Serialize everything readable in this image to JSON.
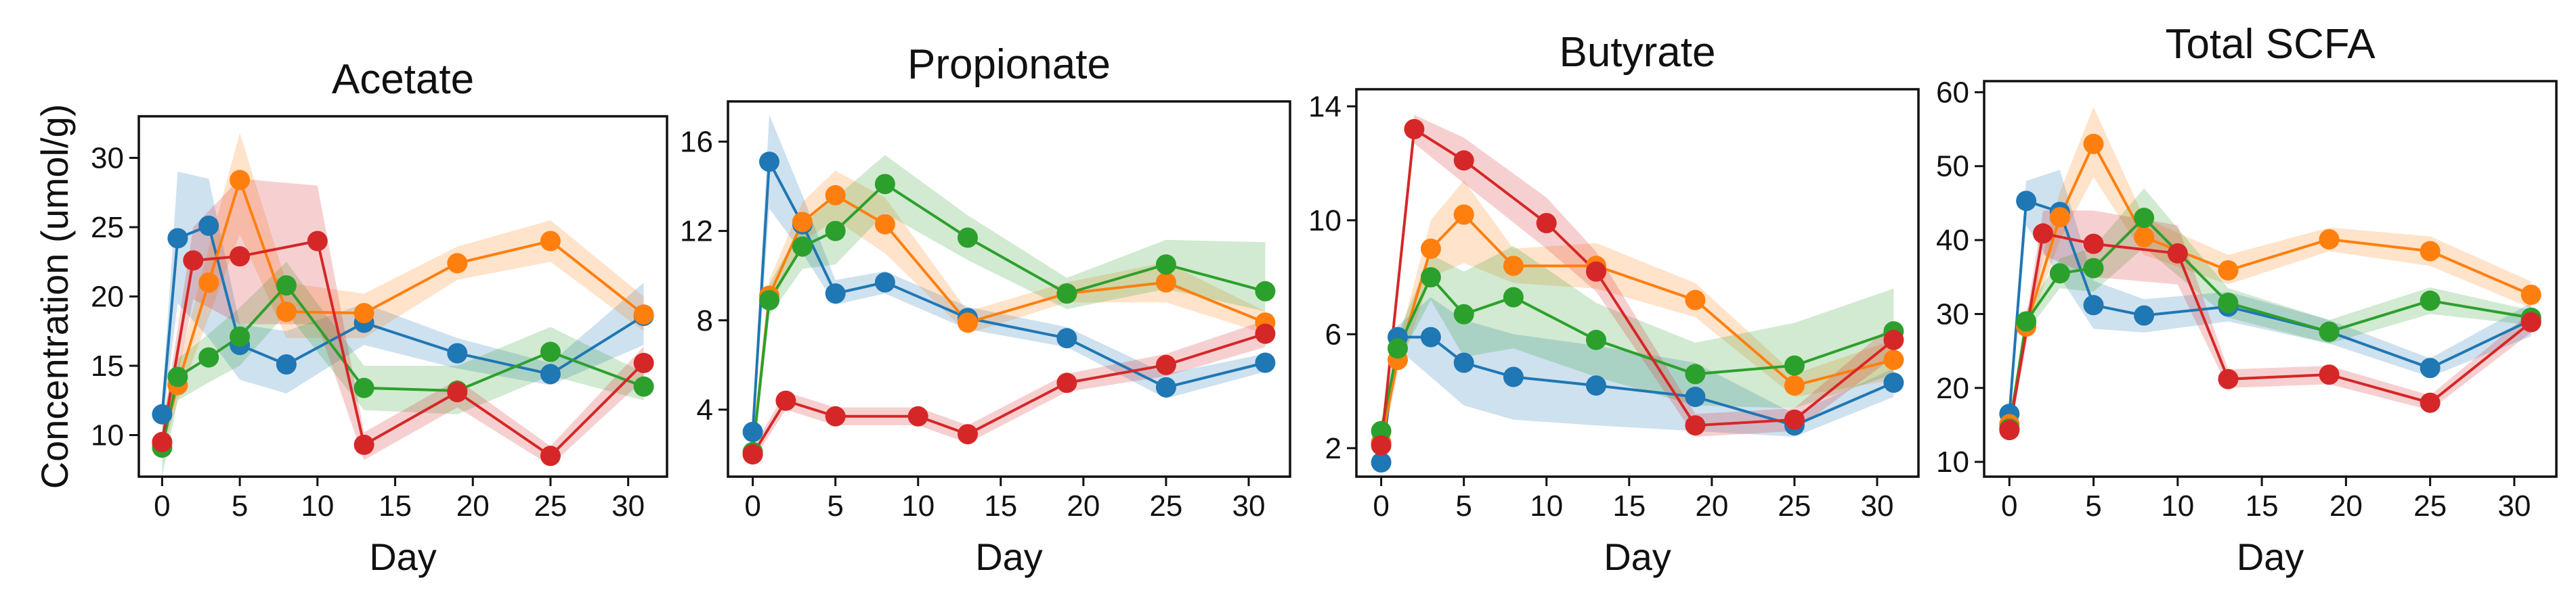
{
  "colors": {
    "blue": "#1f77b4",
    "orange": "#ff7f0e",
    "green": "#2ca02c",
    "red": "#d62728"
  },
  "chart_data": [
    {
      "type": "line",
      "title": "Acetate",
      "xlabel": "Day",
      "ylabel": "Concentration (umol/g)",
      "xlim": [
        -1.5,
        32.5
      ],
      "ylim": [
        7,
        33
      ],
      "xticks": [
        0,
        5,
        10,
        15,
        20,
        25,
        30
      ],
      "yticks": [
        10,
        15,
        20,
        25,
        30
      ],
      "series": [
        {
          "color": "#1f77b4",
          "x": [
            0,
            1,
            3,
            5,
            8,
            13,
            19,
            25,
            31
          ],
          "y": [
            11.5,
            24.2,
            25.1,
            16.5,
            15.1,
            18.1,
            15.9,
            14.4,
            18.6
          ],
          "lower": [
            10.5,
            19.5,
            17,
            14,
            13,
            16.5,
            14.8,
            13.6,
            16.5
          ],
          "upper": [
            12.5,
            29,
            28.5,
            18,
            17.5,
            19.5,
            17,
            15.2,
            21
          ]
        },
        {
          "color": "#ff7f0e",
          "x": [
            0,
            1,
            3,
            5,
            8,
            13,
            19,
            25,
            31
          ],
          "y": [
            9.4,
            13.6,
            21,
            28.4,
            18.9,
            18.8,
            22.4,
            24,
            18.7
          ],
          "lower": [
            8.5,
            12.5,
            18.5,
            24.5,
            17,
            17,
            21.2,
            22.5,
            17.5
          ],
          "upper": [
            10.3,
            14.8,
            23.5,
            31.8,
            21,
            20.2,
            23.6,
            25.5,
            20
          ]
        },
        {
          "color": "#2ca02c",
          "x": [
            0,
            1,
            3,
            5,
            8,
            13,
            19,
            25,
            31
          ],
          "y": [
            9.1,
            14.2,
            15.6,
            17.1,
            20.8,
            13.4,
            13.2,
            16,
            13.5
          ],
          "lower": [
            7,
            12.5,
            13.8,
            15,
            18.8,
            11.8,
            11.5,
            14.3,
            12.5
          ],
          "upper": [
            11.3,
            15.5,
            17.3,
            19.2,
            22.5,
            15,
            15,
            17.8,
            14.5
          ]
        },
        {
          "color": "#d62728",
          "x": [
            0,
            2,
            5,
            10,
            13,
            19,
            25,
            31
          ],
          "y": [
            9.5,
            22.6,
            22.9,
            24,
            9.3,
            13.1,
            8.5,
            15.2
          ],
          "lower": [
            8.6,
            19.8,
            18,
            18,
            8.2,
            12,
            7.8,
            14
          ],
          "upper": [
            10.4,
            25,
            28.5,
            28,
            10.2,
            14,
            9.2,
            16.4
          ]
        }
      ]
    },
    {
      "type": "line",
      "title": "Propionate",
      "xlabel": "Day",
      "ylabel": "",
      "xlim": [
        -1.5,
        32.5
      ],
      "ylim": [
        1,
        17.8
      ],
      "xticks": [
        0,
        5,
        10,
        15,
        20,
        25,
        30
      ],
      "yticks": [
        4,
        8,
        12,
        16
      ],
      "series": [
        {
          "color": "#1f77b4",
          "x": [
            0,
            1,
            3,
            5,
            8,
            13,
            19,
            25,
            31
          ],
          "y": [
            3,
            15.1,
            12.3,
            9.2,
            9.7,
            8.1,
            7.2,
            5,
            6.1
          ],
          "lower": [
            2.6,
            13,
            11,
            8.7,
            9.2,
            7.6,
            6.8,
            4.5,
            5.7
          ],
          "upper": [
            3.4,
            17.2,
            13.6,
            9.8,
            10.2,
            8.6,
            7.7,
            5.6,
            6.5
          ]
        },
        {
          "color": "#ff7f0e",
          "x": [
            0,
            1,
            3,
            5,
            8,
            13,
            19,
            25,
            31
          ],
          "y": [
            2.1,
            9.1,
            12.4,
            13.6,
            12.3,
            7.9,
            9.2,
            9.7,
            7.9
          ],
          "lower": [
            1.7,
            8.5,
            11.5,
            12.5,
            11,
            7.4,
            8.8,
            8.8,
            7.4
          ],
          "upper": [
            2.5,
            9.8,
            13.3,
            14.7,
            13.5,
            8.4,
            9.7,
            10.6,
            8.4
          ]
        },
        {
          "color": "#2ca02c",
          "x": [
            0,
            1,
            3,
            5,
            8,
            13,
            19,
            25,
            31
          ],
          "y": [
            2.1,
            8.9,
            11.3,
            12,
            14.1,
            11.7,
            9.2,
            10.5,
            9.3
          ],
          "lower": [
            1.7,
            8.2,
            10.3,
            10.5,
            12.8,
            10.7,
            8.5,
            9.4,
            8.4
          ],
          "upper": [
            2.5,
            9.6,
            12.3,
            13.5,
            15.4,
            12.7,
            9.9,
            11.6,
            11.5
          ]
        },
        {
          "color": "#d62728",
          "x": [
            0,
            2,
            5,
            10,
            13,
            19,
            25,
            31
          ],
          "y": [
            2,
            4.4,
            3.7,
            3.7,
            2.9,
            5.2,
            6,
            7.4
          ],
          "lower": [
            1.7,
            4,
            3.3,
            3.3,
            2.5,
            4.8,
            5.5,
            6.8
          ],
          "upper": [
            2.3,
            4.8,
            4.1,
            4.1,
            3.3,
            5.6,
            6.5,
            8
          ]
        }
      ]
    },
    {
      "type": "line",
      "title": "Butyrate",
      "xlabel": "Day",
      "ylabel": "",
      "xlim": [
        -1.5,
        32.5
      ],
      "ylim": [
        1,
        14.6
      ],
      "xticks": [
        0,
        5,
        10,
        15,
        20,
        25,
        30
      ],
      "yticks": [
        2,
        6,
        10,
        14
      ],
      "series": [
        {
          "color": "#1f77b4",
          "x": [
            0,
            1,
            3,
            5,
            8,
            13,
            19,
            25,
            31
          ],
          "y": [
            1.5,
            5.9,
            5.9,
            5,
            4.5,
            4.2,
            3.8,
            2.8,
            4.3
          ],
          "lower": [
            1.3,
            5.5,
            4.5,
            3.5,
            3,
            2.8,
            2.6,
            2.4,
            3.8
          ],
          "upper": [
            1.7,
            6.3,
            7.3,
            6.5,
            6,
            5.6,
            5,
            3.2,
            4.8
          ]
        },
        {
          "color": "#ff7f0e",
          "x": [
            0,
            1,
            3,
            5,
            8,
            13,
            19,
            25,
            31
          ],
          "y": [
            2.2,
            5.1,
            9,
            10.2,
            8.4,
            8.4,
            7.2,
            4.2,
            5.1
          ],
          "lower": [
            1.9,
            4.6,
            8,
            8.5,
            7.8,
            7.6,
            6.6,
            3.8,
            4.4
          ],
          "upper": [
            2.5,
            5.6,
            10,
            11.4,
            9,
            9.2,
            7.8,
            4.6,
            5.8
          ]
        },
        {
          "color": "#2ca02c",
          "x": [
            0,
            1,
            3,
            5,
            8,
            13,
            19,
            25,
            31
          ],
          "y": [
            2.6,
            5.5,
            8,
            6.7,
            7.3,
            5.8,
            4.6,
            4.9,
            6.1
          ],
          "lower": [
            2.2,
            5,
            7.2,
            5.2,
            5.5,
            4.5,
            3.5,
            3.4,
            4.6
          ],
          "upper": [
            3,
            6,
            8.8,
            8.2,
            9.1,
            7.1,
            5.7,
            6.4,
            7.6
          ]
        },
        {
          "color": "#d62728",
          "x": [
            0,
            2,
            5,
            10,
            13,
            19,
            25,
            31
          ],
          "y": [
            2.1,
            13.2,
            12.1,
            9.9,
            8.2,
            2.8,
            3,
            5.8
          ],
          "lower": [
            1.8,
            12.7,
            11.3,
            9,
            7.5,
            2.4,
            2.6,
            5.2
          ],
          "upper": [
            2.4,
            13.7,
            12.9,
            10.8,
            8.9,
            3.2,
            3.4,
            6.4
          ]
        }
      ]
    },
    {
      "type": "line",
      "title": "Total  SCFA",
      "xlabel": "Day",
      "ylabel": "",
      "xlim": [
        -1.5,
        32.5
      ],
      "ylim": [
        8,
        61.5
      ],
      "xticks": [
        0,
        5,
        10,
        15,
        20,
        25,
        30
      ],
      "yticks": [
        10,
        20,
        30,
        40,
        50,
        60
      ],
      "series": [
        {
          "color": "#1f77b4",
          "x": [
            0,
            1,
            3,
            5,
            8,
            13,
            19,
            25,
            31
          ],
          "y": [
            16.5,
            45.3,
            43.8,
            31.2,
            29.8,
            31,
            27.6,
            22.7,
            29.2
          ],
          "lower": [
            15.5,
            42,
            35,
            28,
            27.5,
            29,
            26,
            21.5,
            27
          ],
          "upper": [
            17.5,
            48,
            49.5,
            34.5,
            32,
            33,
            29.2,
            24,
            31.5
          ]
        },
        {
          "color": "#ff7f0e",
          "x": [
            0,
            1,
            3,
            5,
            8,
            13,
            19,
            25,
            31
          ],
          "y": [
            15.1,
            28.3,
            43.1,
            53,
            40.4,
            35.9,
            40.1,
            38.5,
            32.6
          ],
          "lower": [
            14.2,
            27,
            40,
            48.5,
            38,
            34,
            38.5,
            36.5,
            30.8
          ],
          "upper": [
            16,
            29.6,
            46.5,
            58,
            43,
            38,
            41.7,
            40.5,
            34.4
          ]
        },
        {
          "color": "#2ca02c",
          "x": [
            0,
            1,
            3,
            5,
            8,
            13,
            19,
            25,
            31
          ],
          "y": [
            14.5,
            29,
            35.5,
            36.2,
            43,
            31.5,
            27.6,
            31.8,
            29.5
          ],
          "lower": [
            13.5,
            27.5,
            33.5,
            33,
            39,
            29.5,
            26,
            30,
            28.5
          ],
          "upper": [
            15.5,
            30.5,
            37.5,
            39,
            47,
            33.5,
            29.2,
            33.6,
            30.5
          ]
        },
        {
          "color": "#d62728",
          "x": [
            0,
            2,
            5,
            10,
            13,
            19,
            25,
            31
          ],
          "y": [
            14.3,
            40.9,
            39.5,
            38.2,
            21.2,
            21.8,
            18,
            28.9
          ],
          "lower": [
            13.5,
            38,
            35,
            34,
            20,
            20.5,
            17,
            27.5
          ],
          "upper": [
            15.1,
            44,
            44,
            42,
            22.5,
            23,
            19,
            30.3
          ]
        }
      ]
    }
  ]
}
